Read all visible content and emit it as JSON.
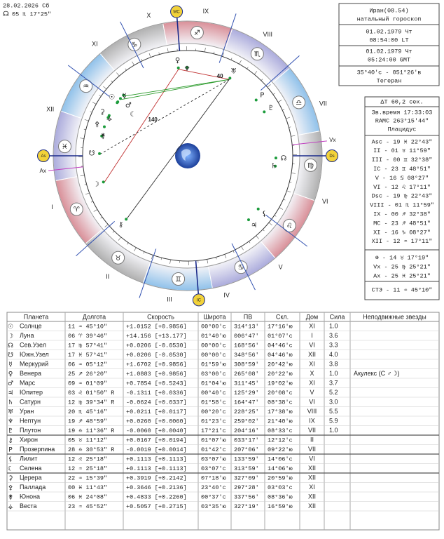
{
  "header": {
    "date": "28.02.2026 Сб",
    "node_glyph": "☊",
    "node_pos": "05 ♏ 17°25\""
  },
  "info": {
    "lines": [
      "Иран(08.54)",
      "натальный гороскоп",
      "01.02.1979 Чт",
      "08:54:00 LT",
      "01.02.1979 Чт",
      "05:24:00 GMT",
      "35°40'с - 051°26'в",
      "Тегеран"
    ]
  },
  "houses": {
    "dt": "ΔT 60,2 сек.",
    "sidereal": "Зв.время 17:33:03",
    "ramc": "RAMC 263°15'44\"",
    "system": "Плацидус",
    "cusps": [
      "Asc - 19 ♓ 22°43\"",
      "II - 01 ♉ 11°59\"",
      "III - 00 ♊ 32°38\"",
      "IC - 23 ♊ 48°51\"",
      "V - 16 ♋ 08°27\"",
      "VI - 12 ♌ 17°11\"",
      "Dsc - 19 ♍ 22°43\"",
      "VIII - 01 ♏ 11°59\"",
      "IX - 00 ♐ 32°38\"",
      "MC - 23 ♐ 48°51\"",
      "XI - 16 ♑ 08°27\"",
      "XII - 12 ♒ 17°11\""
    ],
    "points": [
      "⊕ - 14 ♉ 17°19\"",
      "Vx - 25 ♍ 25°21\"",
      "Ax - 25 ♓ 25°21\""
    ],
    "ste": "СТЭ - 11 ♒ 45°10\""
  },
  "wheel": {
    "signs": [
      "♈",
      "♉",
      "♊",
      "♋",
      "♌",
      "♍",
      "♎",
      "♏",
      "♐",
      "♑",
      "♒",
      "♓"
    ],
    "house_numerals": [
      "I",
      "II",
      "III",
      "IV",
      "V",
      "VI",
      "VII",
      "VIII",
      "IX",
      "X",
      "XI",
      "XII"
    ],
    "angles": [
      "As",
      "IC",
      "Ds",
      "MC"
    ],
    "vx": "Vx",
    "ax": "Ax",
    "aspect_labels": [
      "140",
      "40"
    ]
  },
  "table": {
    "columns": [
      "Планета",
      "Долгота",
      "Скорость",
      "Широта",
      "ПВ",
      "Скл.",
      "Дом",
      "Сила",
      "Неподвижные звезды"
    ],
    "rows": [
      {
        "glyph": "☉",
        "name": "Солнце",
        "lon": "11 ♒ 45°10\"",
        "speed": "+1.0152 [+0.9856]",
        "lat": "00°00'c",
        "ra": "314°13'",
        "dec": "17°16'ю",
        "house": "XI",
        "power": "1.0"
      },
      {
        "glyph": "☽",
        "name": "Луна",
        "lon": "06 ♈ 39°46\"",
        "speed": "+14.156 [+13.177]",
        "lat": "01°40'ю",
        "ra": "006°47'",
        "dec": "01°07'c",
        "house": "I",
        "power": "3.6"
      },
      {
        "glyph": "☊",
        "name": "Сев.Узел",
        "lon": "17 ♍ 57°41\"",
        "speed": "+0.0206 [-0.0530]",
        "lat": "00°00'c",
        "ra": "168°56'",
        "dec": "04°46'c",
        "house": "VI",
        "power": "3.3"
      },
      {
        "glyph": "☋",
        "name": "Южн.Узел",
        "lon": "17 ♓ 57°41\"",
        "speed": "+0.0206 [-0.0530]",
        "lat": "00°00'c",
        "ra": "348°56'",
        "dec": "04°46'ю",
        "house": "XII",
        "power": "4.0"
      },
      {
        "glyph": "☿",
        "name": "Меркурий",
        "lon": "06 ♒ 05°12\"",
        "speed": "+1.6702 [+0.9856]",
        "lat": "01°59'ю",
        "ra": "308°59'",
        "dec": "20°42'ю",
        "house": "XI",
        "power": "3.8"
      },
      {
        "glyph": "♀",
        "name": "Венера",
        "lon": "25 ♐ 26°20\"",
        "speed": "+1.0883 [+0.9856]",
        "lat": "03°00'c",
        "ra": "265°08'",
        "dec": "20°22'ю",
        "house": "X",
        "power": "1.0",
        "star": "Акулекс (С ♂☽)"
      },
      {
        "glyph": "♂",
        "name": "Марс",
        "lon": "09 ♒ 01°09\"",
        "speed": "+0.7854 [+0.5243]",
        "lat": "01°04'ю",
        "ra": "311°45'",
        "dec": "19°02'ю",
        "house": "XI",
        "power": "3.7"
      },
      {
        "glyph": "♃",
        "name": "Юпитер",
        "lon": "03 ♌ 01°50\" R",
        "speed": "-0.1311 [+0.0336]",
        "lat": "00°40'c",
        "ra": "125°29'",
        "dec": "20°08'c",
        "house": "V",
        "power": "5.2"
      },
      {
        "glyph": "♄",
        "name": "Сатурн",
        "lon": "12 ♍ 39°34\" R",
        "speed": "-0.0624 [+0.0337]",
        "lat": "01°58'c",
        "ra": "164°47'",
        "dec": "08°38'c",
        "house": "VI",
        "power": "3.0"
      },
      {
        "glyph": "♅",
        "name": "Уран",
        "lon": "20 ♏ 45°16\"",
        "speed": "+0.0211 [+0.0117]",
        "lat": "00°20'c",
        "ra": "228°25'",
        "dec": "17°38'ю",
        "house": "VIII",
        "power": "5.5"
      },
      {
        "glyph": "♆",
        "name": "Нептун",
        "lon": "19 ♐ 48°59\"",
        "speed": "+0.0260 [+0.0060]",
        "lat": "01°23'c",
        "ra": "259°02'",
        "dec": "21°40'ю",
        "house": "IX",
        "power": "5.9"
      },
      {
        "glyph": "♇",
        "name": "Плутон",
        "lon": "19 ♎ 11°36\" R",
        "speed": "-0.0060 [+0.0040]",
        "lat": "17°21'c",
        "ra": "204°16'",
        "dec": "08°33'c",
        "house": "VII",
        "power": "1.0"
      },
      {
        "glyph": "⚷",
        "name": "Хирон",
        "lon": "05 ♉ 11°12\"",
        "speed": "+0.0167 [+0.0194]",
        "lat": "01°07'ю",
        "ra": "033°17'",
        "dec": "12°12'c",
        "house": "II"
      },
      {
        "glyph": "P",
        "name": "Прозерпина",
        "lon": "28 ♎ 30°53\" R",
        "speed": "-0.0019 [+0.0014]",
        "lat": "01°42'c",
        "ra": "207°06'",
        "dec": "09°22'ю",
        "house": "VII"
      },
      {
        "glyph": "⚸",
        "name": "Лилит",
        "lon": "12 ♌ 25°18\"",
        "speed": "+0.1113 [+0.1113]",
        "lat": "03°07'ю",
        "ra": "133°59'",
        "dec": "14°06'c",
        "house": "VI"
      },
      {
        "glyph": "☾",
        "name": "Селена",
        "lon": "12 ♒ 25°18\"",
        "speed": "+0.1113 [+0.1113]",
        "lat": "03°07'c",
        "ra": "313°59'",
        "dec": "14°06'ю",
        "house": "XII"
      },
      {
        "glyph": "⚳",
        "name": "Церера",
        "lon": "22 ♒ 15°39\"",
        "speed": "+0.3919 [+0.2142]",
        "lat": "07°18'ю",
        "ra": "327°09'",
        "dec": "20°59'ю",
        "house": "XII"
      },
      {
        "glyph": "⚴",
        "name": "Паллада",
        "lon": "00 ♓ 11°43\"",
        "speed": "+0.3646 [+0.2136]",
        "lat": "23°40'c",
        "ra": "297°28'",
        "dec": "03°03'c",
        "house": "XI"
      },
      {
        "glyph": "⚵",
        "name": "Юнона",
        "lon": "06 ♓ 24°08\"",
        "speed": "+0.4833 [+0.2260]",
        "lat": "00°37'c",
        "ra": "337°56'",
        "dec": "08°36'ю",
        "house": "XII"
      },
      {
        "glyph": "⚶",
        "name": "Веста",
        "lon": "23 ♒ 45°52\"",
        "speed": "+0.5057 [+0.2715]",
        "lat": "03°35'ю",
        "ra": "327°19'",
        "dec": "16°59'ю",
        "house": "XII"
      }
    ]
  }
}
